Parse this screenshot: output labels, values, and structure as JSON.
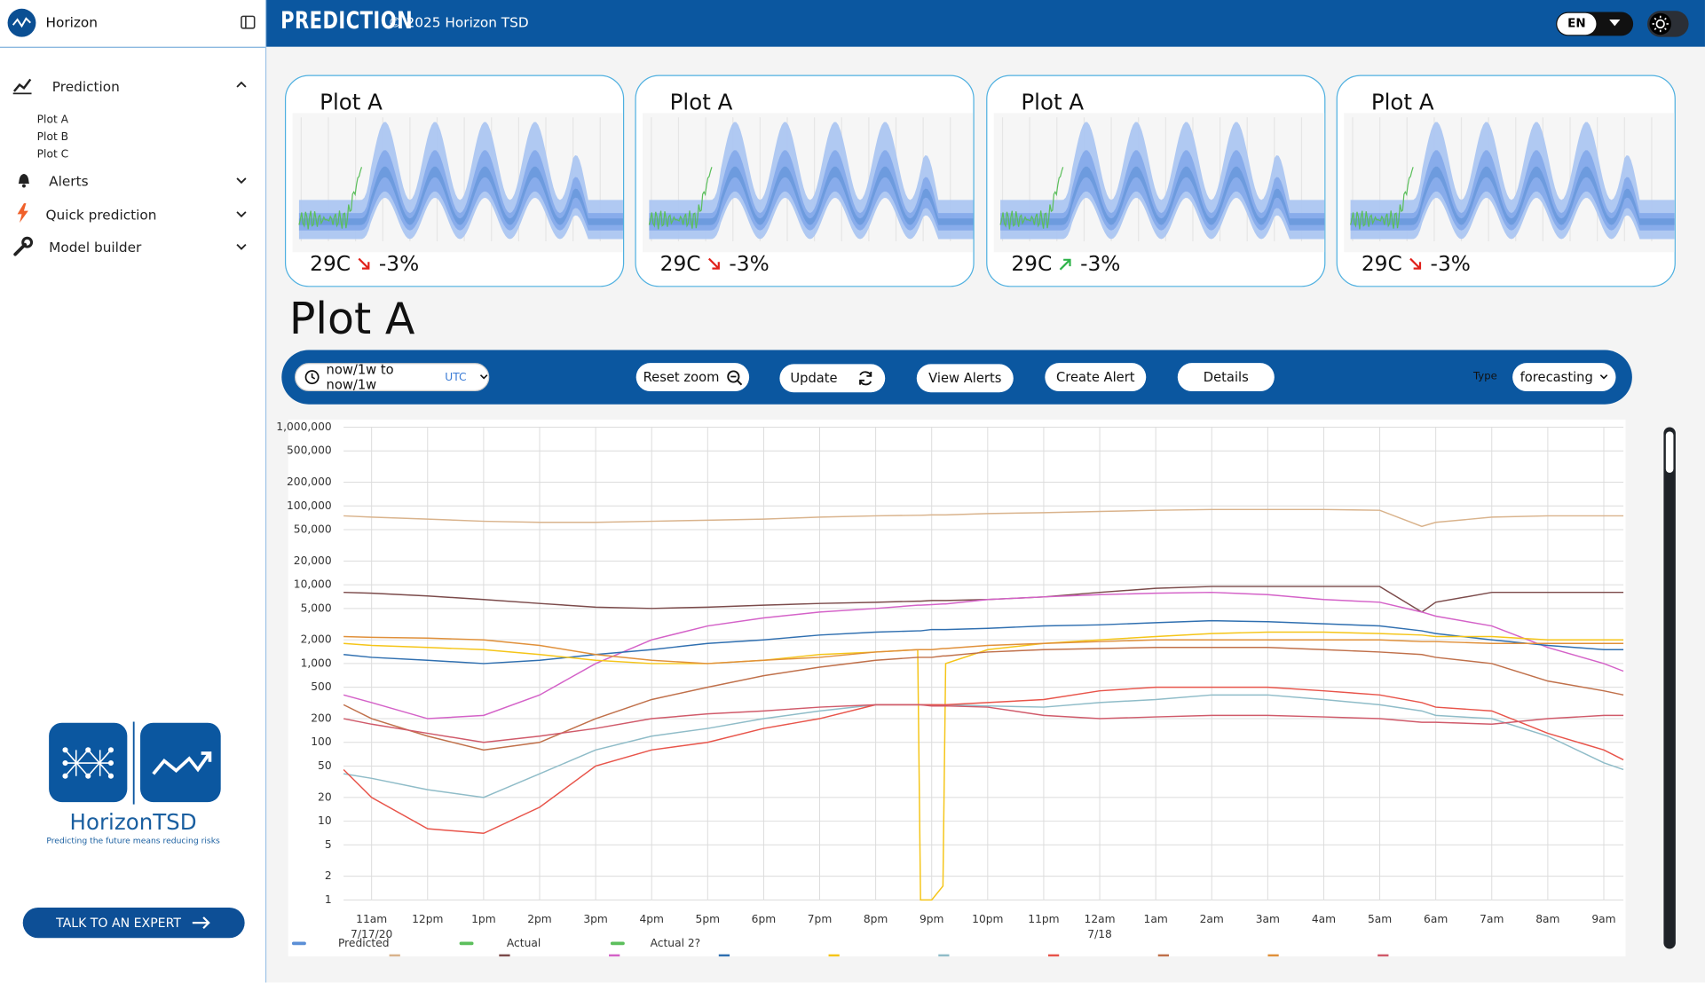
{
  "sidebar": {
    "brand": "Horizon",
    "nav": [
      {
        "label": "Prediction",
        "children": [
          "Plot A",
          "Plot B",
          "Plot C"
        ]
      },
      {
        "label": "Alerts"
      },
      {
        "label": "Quick prediction"
      },
      {
        "label": "Model builder"
      }
    ],
    "logo_name": "HorizonTSD",
    "tagline": "Predicting the future means reducing risks",
    "cta": "TALK TO AN EXPERT"
  },
  "header": {
    "title": "PREDICTION",
    "copyright": "© 2025 Horizon TSD",
    "language": "EN"
  },
  "cards": [
    {
      "title": "Plot A",
      "value": "29C",
      "trend": "down",
      "change": "-3%"
    },
    {
      "title": "Plot A",
      "value": "29C",
      "trend": "down",
      "change": "-3%"
    },
    {
      "title": "Plot A",
      "value": "29C",
      "trend": "up",
      "change": "-3%"
    },
    {
      "title": "Plot A",
      "value": "29C",
      "trend": "down",
      "change": "-3%"
    }
  ],
  "section_title": "Plot A",
  "toolbar": {
    "range": "now/1w to now/1w",
    "timezone": "UTC",
    "buttons": [
      "Reset zoom",
      "Update",
      "View Alerts",
      "Create Alert",
      "Details"
    ],
    "type_label": "Type",
    "type_value": "forecasting"
  },
  "chart_data": {
    "type": "line",
    "log_scale": true,
    "grid": true,
    "ylim": [
      1,
      1000000
    ],
    "yticks": [
      1,
      2,
      5,
      10,
      20,
      50,
      100,
      200,
      500,
      {
        "value": 1000,
        "label": "1,000"
      },
      {
        "value": 2000,
        "label": "2,000"
      },
      {
        "value": 5000,
        "label": "5,000"
      },
      {
        "value": 10000,
        "label": "10,000"
      },
      {
        "value": 20000,
        "label": "20,000"
      },
      {
        "value": 50000,
        "label": "50,000"
      },
      {
        "value": 100000,
        "label": "100,000"
      },
      {
        "value": 200000,
        "label": "200,000"
      },
      {
        "value": 500000,
        "label": "500,000"
      },
      {
        "value": 1000000,
        "label": "1,000,000"
      }
    ],
    "xlim": [
      10.5,
      33.35
    ],
    "xticks": [
      {
        "value": 11,
        "label": "11am"
      },
      {
        "value": 12,
        "label": "12pm"
      },
      {
        "value": 13,
        "label": "1pm"
      },
      {
        "value": 14,
        "label": "2pm"
      },
      {
        "value": 15,
        "label": "3pm"
      },
      {
        "value": 16,
        "label": "4pm"
      },
      {
        "value": 17,
        "label": "5pm"
      },
      {
        "value": 18,
        "label": "6pm"
      },
      {
        "value": 19,
        "label": "7pm"
      },
      {
        "value": 20,
        "label": "8pm"
      },
      {
        "value": 21,
        "label": "9pm"
      },
      {
        "value": 22,
        "label": "10pm"
      },
      {
        "value": 23,
        "label": "11pm"
      },
      {
        "value": 24,
        "label": "12am"
      },
      {
        "value": 25,
        "label": "1am"
      },
      {
        "value": 26,
        "label": "2am"
      },
      {
        "value": 27,
        "label": "3am"
      },
      {
        "value": 28,
        "label": "4am"
      },
      {
        "value": 29,
        "label": "5am"
      },
      {
        "value": 30,
        "label": "6am"
      },
      {
        "value": 31,
        "label": "7am"
      },
      {
        "value": 32,
        "label": "8am"
      },
      {
        "value": 33,
        "label": "9am"
      }
    ],
    "x_date_labels": [
      {
        "value": 11,
        "label": "7/17/20"
      },
      {
        "value": 24,
        "label": "7/18"
      }
    ],
    "legend": [
      {
        "name": "Predicted",
        "color": "#5b8fd6"
      },
      {
        "name": "Actual",
        "color": "#5cbf5c"
      },
      {
        "name": "Actual 2?",
        "color": "#5cbf5c"
      }
    ],
    "x": [
      10.5,
      11,
      12,
      13,
      14,
      15,
      16,
      17,
      18,
      19,
      20,
      20.75,
      20.8,
      21,
      21.2,
      21.25,
      22,
      23,
      24,
      25,
      26,
      27,
      28,
      29,
      29.75,
      30,
      31,
      32,
      33,
      33.35
    ],
    "series": [
      {
        "color": "#d9b38c",
        "values": [
          75000,
          72000,
          68000,
          64000,
          62000,
          62000,
          64000,
          66000,
          68000,
          72000,
          75000,
          76000,
          76000,
          77000,
          77000,
          77000,
          80000,
          82000,
          85000,
          88000,
          90000,
          90000,
          90000,
          88000,
          55000,
          62000,
          72000,
          75000,
          75000,
          75000
        ]
      },
      {
        "color": "#7b4a4a",
        "values": [
          8000,
          7800,
          7200,
          6500,
          5800,
          5200,
          5000,
          5200,
          5500,
          5800,
          6000,
          6200,
          6200,
          6300,
          6300,
          6300,
          6500,
          7000,
          8000,
          9000,
          9500,
          9500,
          9500,
          9500,
          4500,
          6000,
          8000,
          8000,
          8000,
          8000
        ]
      },
      {
        "color": "#d462c8",
        "values": [
          400,
          320,
          200,
          220,
          400,
          1000,
          2000,
          3000,
          3800,
          4500,
          5000,
          5500,
          5500,
          5600,
          5700,
          5700,
          6500,
          7000,
          7500,
          7800,
          8000,
          7500,
          6500,
          6000,
          4500,
          4000,
          3000,
          1600,
          1000,
          800
        ]
      },
      {
        "color": "#2f6fb0",
        "values": [
          1300,
          1200,
          1100,
          1000,
          1100,
          1300,
          1500,
          1800,
          2000,
          2300,
          2500,
          2600,
          2600,
          2700,
          2700,
          2700,
          2800,
          3000,
          3100,
          3300,
          3500,
          3400,
          3200,
          3000,
          2600,
          2400,
          2000,
          1700,
          1500,
          1500
        ]
      },
      {
        "color": "#f5c518",
        "values": [
          1800,
          1700,
          1600,
          1500,
          1300,
          1100,
          1000,
          1000,
          1100,
          1300,
          1400,
          1500,
          1,
          1,
          1.5,
          1000,
          1500,
          1800,
          2000,
          2200,
          2400,
          2500,
          2500,
          2400,
          2300,
          2200,
          2200,
          2000,
          2000,
          2000
        ]
      },
      {
        "color": "#8fbcc8",
        "values": [
          40,
          35,
          25,
          20,
          40,
          80,
          120,
          150,
          200,
          250,
          300,
          300,
          300,
          300,
          300,
          300,
          290,
          280,
          320,
          350,
          400,
          400,
          350,
          300,
          250,
          220,
          200,
          120,
          55,
          45
        ]
      },
      {
        "color": "#e8544a",
        "values": [
          45,
          20,
          8,
          7,
          15,
          50,
          80,
          100,
          150,
          200,
          300,
          300,
          300,
          300,
          300,
          300,
          320,
          350,
          450,
          500,
          500,
          500,
          450,
          400,
          320,
          280,
          250,
          130,
          80,
          60
        ]
      },
      {
        "color": "#c0704a",
        "values": [
          300,
          200,
          120,
          80,
          100,
          200,
          350,
          500,
          700,
          900,
          1100,
          1200,
          1200,
          1200,
          1250,
          1250,
          1400,
          1500,
          1550,
          1600,
          1600,
          1600,
          1500,
          1400,
          1300,
          1200,
          1000,
          600,
          450,
          400
        ]
      },
      {
        "color": "#e0903a",
        "values": [
          2200,
          2150,
          2100,
          2000,
          1700,
          1300,
          1100,
          1000,
          1100,
          1200,
          1400,
          1500,
          1500,
          1500,
          1550,
          1550,
          1700,
          1800,
          1900,
          2000,
          2000,
          2000,
          2000,
          2000,
          1900,
          1900,
          1800,
          1800,
          1800,
          1800
        ]
      },
      {
        "color": "#d05a6a",
        "values": [
          200,
          170,
          130,
          100,
          120,
          150,
          200,
          230,
          250,
          280,
          300,
          300,
          300,
          290,
          290,
          290,
          280,
          220,
          200,
          210,
          220,
          220,
          210,
          200,
          180,
          180,
          170,
          200,
          220,
          220
        ]
      }
    ]
  }
}
